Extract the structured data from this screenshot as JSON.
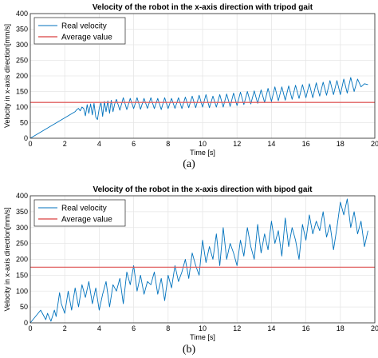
{
  "chart_data": [
    {
      "type": "line",
      "title": "Velocity of the robot in the x-axis direction with tripod gait",
      "xlabel": "Time [s]",
      "ylabel": "Velocity in x-axis direction[mm/s]",
      "xlim": [
        0,
        20
      ],
      "ylim": [
        0,
        400
      ],
      "xticks": [
        0,
        2,
        4,
        6,
        8,
        10,
        12,
        14,
        16,
        18,
        20
      ],
      "yticks": [
        0,
        50,
        100,
        150,
        200,
        250,
        300,
        350,
        400
      ],
      "grid": true,
      "legend": "top-left",
      "series": [
        {
          "name": "Real velocity",
          "color": "#0072BD",
          "x": [
            0,
            2.6,
            2.7,
            2.8,
            2.9,
            3.0,
            3.1,
            3.2,
            3.3,
            3.4,
            3.5,
            3.6,
            3.7,
            3.8,
            3.9,
            4.0,
            4.1,
            4.2,
            4.3,
            4.4,
            4.5,
            4.6,
            4.7,
            4.8,
            4.9,
            5.0,
            5.2,
            5.4,
            5.6,
            5.8,
            6.0,
            6.2,
            6.4,
            6.6,
            6.8,
            7.0,
            7.2,
            7.4,
            7.6,
            7.8,
            8.0,
            8.2,
            8.4,
            8.6,
            8.8,
            9.0,
            9.2,
            9.4,
            9.6,
            9.8,
            10.0,
            10.2,
            10.4,
            10.6,
            10.8,
            11.0,
            11.2,
            11.4,
            11.6,
            11.8,
            12.0,
            12.2,
            12.4,
            12.6,
            12.8,
            13.0,
            13.2,
            13.4,
            13.6,
            13.8,
            14.0,
            14.2,
            14.4,
            14.6,
            14.8,
            15.0,
            15.2,
            15.4,
            15.6,
            15.8,
            16.0,
            16.2,
            16.4,
            16.6,
            16.8,
            17.0,
            17.2,
            17.4,
            17.6,
            17.8,
            18.0,
            18.2,
            18.4,
            18.6,
            18.8,
            19.0,
            19.2,
            19.4,
            19.6
          ],
          "values": [
            0,
            85,
            92,
            96,
            88,
            100,
            95,
            72,
            108,
            80,
            110,
            75,
            112,
            68,
            60,
            95,
            115,
            70,
            118,
            85,
            120,
            80,
            122,
            85,
            110,
            125,
            90,
            130,
            92,
            128,
            95,
            130,
            93,
            128,
            96,
            130,
            95,
            128,
            92,
            130,
            95,
            128,
            96,
            130,
            95,
            132,
            98,
            135,
            98,
            138,
            100,
            140,
            98,
            135,
            100,
            140,
            100,
            142,
            102,
            145,
            105,
            148,
            108,
            150,
            110,
            152,
            112,
            155,
            115,
            160,
            118,
            165,
            120,
            165,
            122,
            168,
            125,
            170,
            128,
            172,
            130,
            175,
            130,
            178,
            135,
            180,
            138,
            185,
            140,
            185,
            140,
            190,
            145,
            195,
            150,
            190,
            165,
            175,
            172
          ]
        },
        {
          "name": "Average value",
          "color": "#E06060",
          "x": [
            0,
            20
          ],
          "values": [
            115,
            115
          ]
        }
      ]
    },
    {
      "type": "line",
      "title": "Velocity of the robot in the x-axis direction with bipod gait",
      "xlabel": "Time [s]",
      "ylabel": "Velocity in x-axis direction[mm/s]",
      "xlim": [
        0,
        20
      ],
      "ylim": [
        0,
        400
      ],
      "xticks": [
        0,
        2,
        4,
        6,
        8,
        10,
        12,
        14,
        16,
        18,
        20
      ],
      "yticks": [
        0,
        50,
        100,
        150,
        200,
        250,
        300,
        350,
        400
      ],
      "grid": true,
      "legend": "top-left",
      "series": [
        {
          "name": "Real velocity",
          "color": "#0072BD",
          "x": [
            0,
            0.6,
            0.9,
            1.0,
            1.2,
            1.4,
            1.5,
            1.7,
            1.8,
            2.0,
            2.2,
            2.4,
            2.6,
            2.8,
            3.0,
            3.2,
            3.4,
            3.6,
            3.8,
            4.0,
            4.2,
            4.4,
            4.6,
            4.8,
            5.0,
            5.2,
            5.4,
            5.6,
            5.8,
            6.0,
            6.2,
            6.4,
            6.6,
            6.8,
            7.0,
            7.2,
            7.4,
            7.6,
            7.8,
            8.0,
            8.2,
            8.4,
            8.6,
            8.8,
            9.0,
            9.2,
            9.4,
            9.6,
            9.8,
            10.0,
            10.2,
            10.4,
            10.6,
            10.8,
            11.0,
            11.2,
            11.4,
            11.6,
            11.8,
            12.0,
            12.2,
            12.4,
            12.6,
            12.8,
            13.0,
            13.2,
            13.4,
            13.6,
            13.8,
            14.0,
            14.2,
            14.4,
            14.6,
            14.8,
            15.0,
            15.2,
            15.4,
            15.6,
            15.8,
            16.0,
            16.2,
            16.4,
            16.6,
            16.8,
            17.0,
            17.2,
            17.4,
            17.6,
            17.8,
            18.0,
            18.2,
            18.4,
            18.6,
            18.8,
            19.0,
            19.2,
            19.4,
            19.6
          ],
          "values": [
            0,
            40,
            10,
            30,
            5,
            40,
            20,
            95,
            60,
            30,
            100,
            40,
            110,
            50,
            120,
            80,
            130,
            60,
            110,
            40,
            90,
            130,
            50,
            120,
            100,
            140,
            60,
            160,
            120,
            180,
            100,
            150,
            90,
            130,
            120,
            160,
            90,
            140,
            70,
            150,
            110,
            180,
            130,
            160,
            200,
            140,
            220,
            180,
            150,
            260,
            190,
            240,
            200,
            280,
            180,
            300,
            200,
            250,
            220,
            180,
            260,
            210,
            300,
            240,
            200,
            310,
            220,
            280,
            230,
            320,
            250,
            290,
            210,
            330,
            240,
            300,
            260,
            200,
            310,
            260,
            340,
            280,
            320,
            290,
            350,
            270,
            310,
            230,
            300,
            380,
            340,
            390,
            300,
            350,
            280,
            320,
            240,
            290
          ]
        },
        {
          "name": "Average value",
          "color": "#E06060",
          "x": [
            0,
            20
          ],
          "values": [
            175,
            175
          ]
        }
      ]
    }
  ],
  "captions": [
    "(a)",
    "(b)"
  ],
  "colors": {
    "grid": "#E6E6E6",
    "axis": "#262626",
    "background": "#ffffff"
  }
}
